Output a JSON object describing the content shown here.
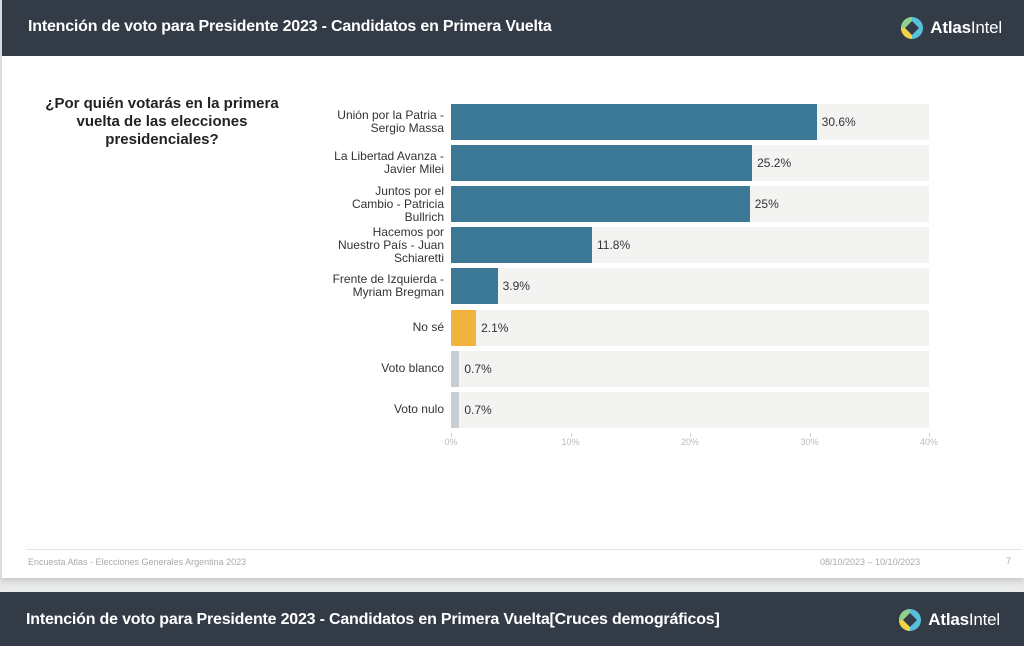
{
  "header": {
    "title": "Intención de voto para Presidente 2023 - Candidatos en Primera Vuelta",
    "logo_icon": "atlas-diamond-icon",
    "logo_text_bold": "Atlas",
    "logo_text": "Intel"
  },
  "question": "¿Por quién votarás en la primera vuelta de las elecciones presidenciales?",
  "chart_data": {
    "type": "bar",
    "orientation": "horizontal",
    "title": "¿Por quién votarás en la primera vuelta de las elecciones presidenciales?",
    "categories": [
      "Unión por la Patria - Sergio Massa",
      "La Libertad Avanza - Javier Milei",
      "Juntos por el Cambio - Patricia Bullrich",
      "Hacemos por Nuestro País - Juan Schiaretti",
      "Frente de Izquierda - Myriam Bregman",
      "No sé",
      "Voto blanco",
      "Voto nulo"
    ],
    "values": [
      30.6,
      25.2,
      25,
      11.8,
      3.9,
      2.1,
      0.7,
      0.7
    ],
    "value_labels": [
      "30.6%",
      "25.2%",
      "25%",
      "11.8%",
      "3.9%",
      "2.1%",
      "0.7%",
      "0.7%"
    ],
    "colors": [
      "#3a7896",
      "#3a7896",
      "#3a7896",
      "#3a7896",
      "#3a7896",
      "#f0b43c",
      "#c9ced4",
      "#c9ced4"
    ],
    "xlim": [
      0,
      40
    ],
    "xticks": [
      0,
      10,
      20,
      30,
      40
    ],
    "xtick_labels": [
      "0%",
      "10%",
      "20%",
      "30%",
      "40%"
    ],
    "xlabel": "",
    "ylabel": "",
    "grid": false,
    "background_track_color": "#f3f3f1"
  },
  "footer": {
    "left": "Encuesta Atlas - Elecciones Generales Argentina 2023",
    "dates": "08/10/2023 – 10/10/2023",
    "page": "7"
  },
  "next_slide": {
    "title": "Intención de voto para Presidente 2023 - Candidatos en Primera Vuelta",
    "subtitle": "[Cruces demográficos]",
    "logo_text_bold": "Atlas",
    "logo_text": "Intel"
  }
}
